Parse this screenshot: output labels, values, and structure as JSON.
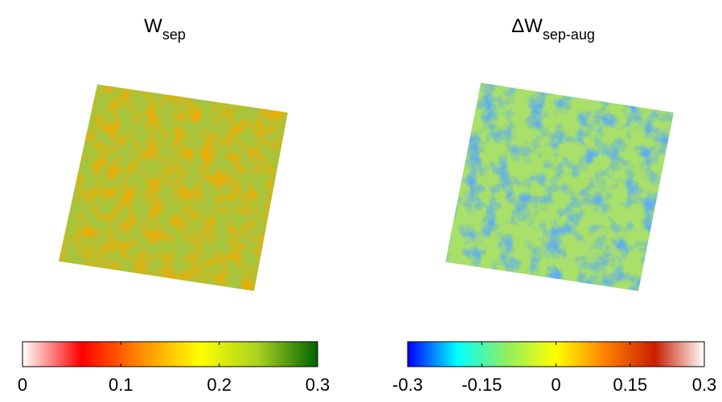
{
  "chart_data": [
    {
      "type": "heatmap",
      "title": "W",
      "title_subscript": "sep",
      "clim": [
        0,
        0.3
      ],
      "cticks": [
        0,
        0.1,
        0.2,
        0.3
      ],
      "colormap": [
        "#ffffff",
        "#ff0000",
        "#ff8c00",
        "#ffff00",
        "#a8d020",
        "#006400"
      ],
      "base_color": "#a6c43c"
    },
    {
      "type": "heatmap",
      "title": "ΔW",
      "title_subscript": "sep-aug",
      "clim": [
        -0.3,
        0.3
      ],
      "cticks": [
        -0.3,
        -0.15,
        0,
        0.15,
        0.3
      ],
      "colormap": [
        "#0000ff",
        "#00ffff",
        "#90ee60",
        "#ffff00",
        "#ff8000",
        "#c81e00",
        "#ffffff"
      ],
      "base_color": "#a8e06a"
    }
  ]
}
